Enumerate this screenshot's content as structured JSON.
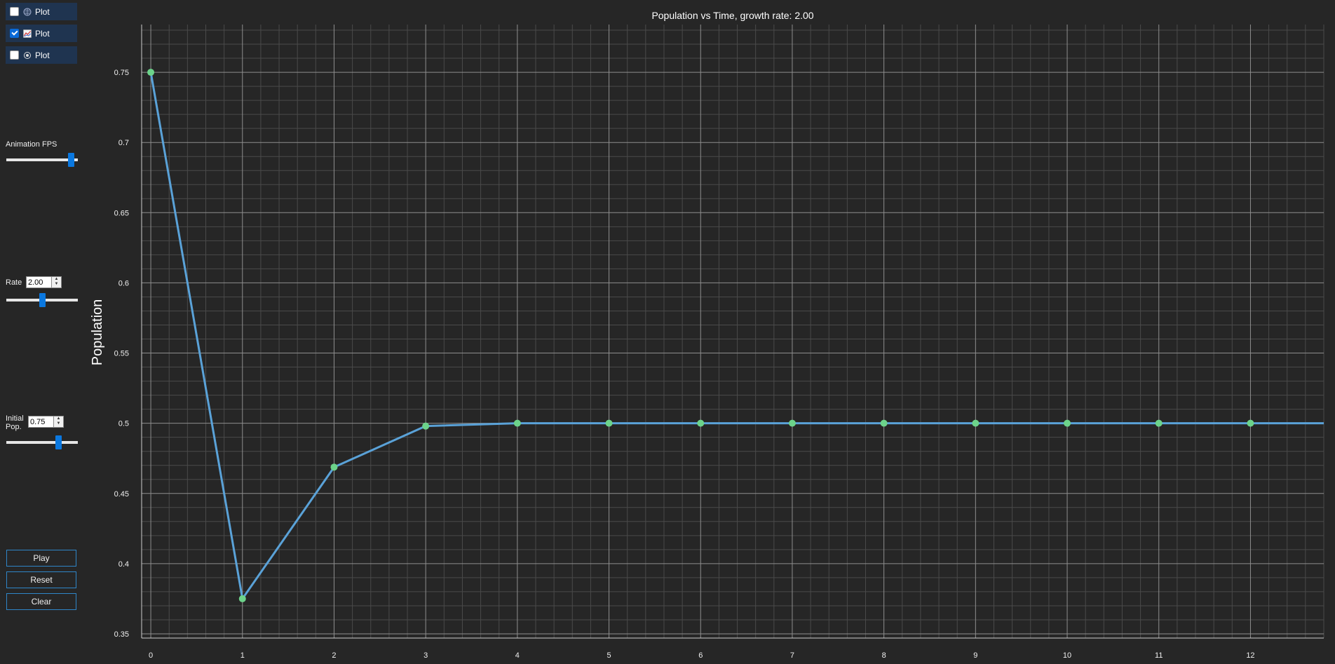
{
  "sidebar": {
    "toggles": [
      {
        "label": "Plot",
        "checked": false,
        "icon": "globe-icon"
      },
      {
        "label": "Plot",
        "checked": true,
        "icon": "line-chart-icon"
      },
      {
        "label": "Plot",
        "checked": false,
        "icon": "flower-icon"
      }
    ],
    "fps_label": "Animation FPS",
    "fps_level": 0.95,
    "rate_label": "Rate",
    "rate_value": "2.00",
    "rate_level": 0.5,
    "init_label_1": "Initial",
    "init_label_2": "Pop.",
    "init_value": "0.75",
    "init_level": 0.75,
    "play_label": "Play",
    "reset_label": "Reset",
    "clear_label": "Clear"
  },
  "colors": {
    "line": "#5aa2d8",
    "marker": "#6cd38a",
    "accent": "#0a78e0",
    "background": "#262626"
  },
  "chart_data": {
    "type": "line",
    "title": "Population vs Time, growth rate: 2.00",
    "xlabel": "",
    "ylabel": "Population",
    "x": [
      0,
      1,
      2,
      3,
      4,
      5,
      6,
      7,
      8,
      9,
      10,
      11,
      12
    ],
    "y": [
      0.75,
      0.375,
      0.46875,
      0.498,
      0.5,
      0.5,
      0.5,
      0.5,
      0.5,
      0.5,
      0.5,
      0.5,
      0.5
    ],
    "line_extends_to_edge": true,
    "xlim": [
      -0.1,
      12.8
    ],
    "ylim": [
      0.347,
      0.784
    ],
    "xticks": [
      0,
      1,
      2,
      3,
      4,
      5,
      6,
      7,
      8,
      9,
      10,
      11,
      12
    ],
    "xtick_labels": [
      "0",
      "1",
      "2",
      "3",
      "4",
      "5",
      "6",
      "7",
      "8",
      "9",
      "10",
      "11",
      "12"
    ],
    "yticks": [
      0.35,
      0.4,
      0.45,
      0.5,
      0.55,
      0.6,
      0.65,
      0.7,
      0.75
    ],
    "ytick_labels": [
      "0.35",
      "0.4",
      "0.45",
      "0.5",
      "0.55",
      "0.6",
      "0.65",
      "0.7",
      "0.75"
    ],
    "grid": true
  }
}
